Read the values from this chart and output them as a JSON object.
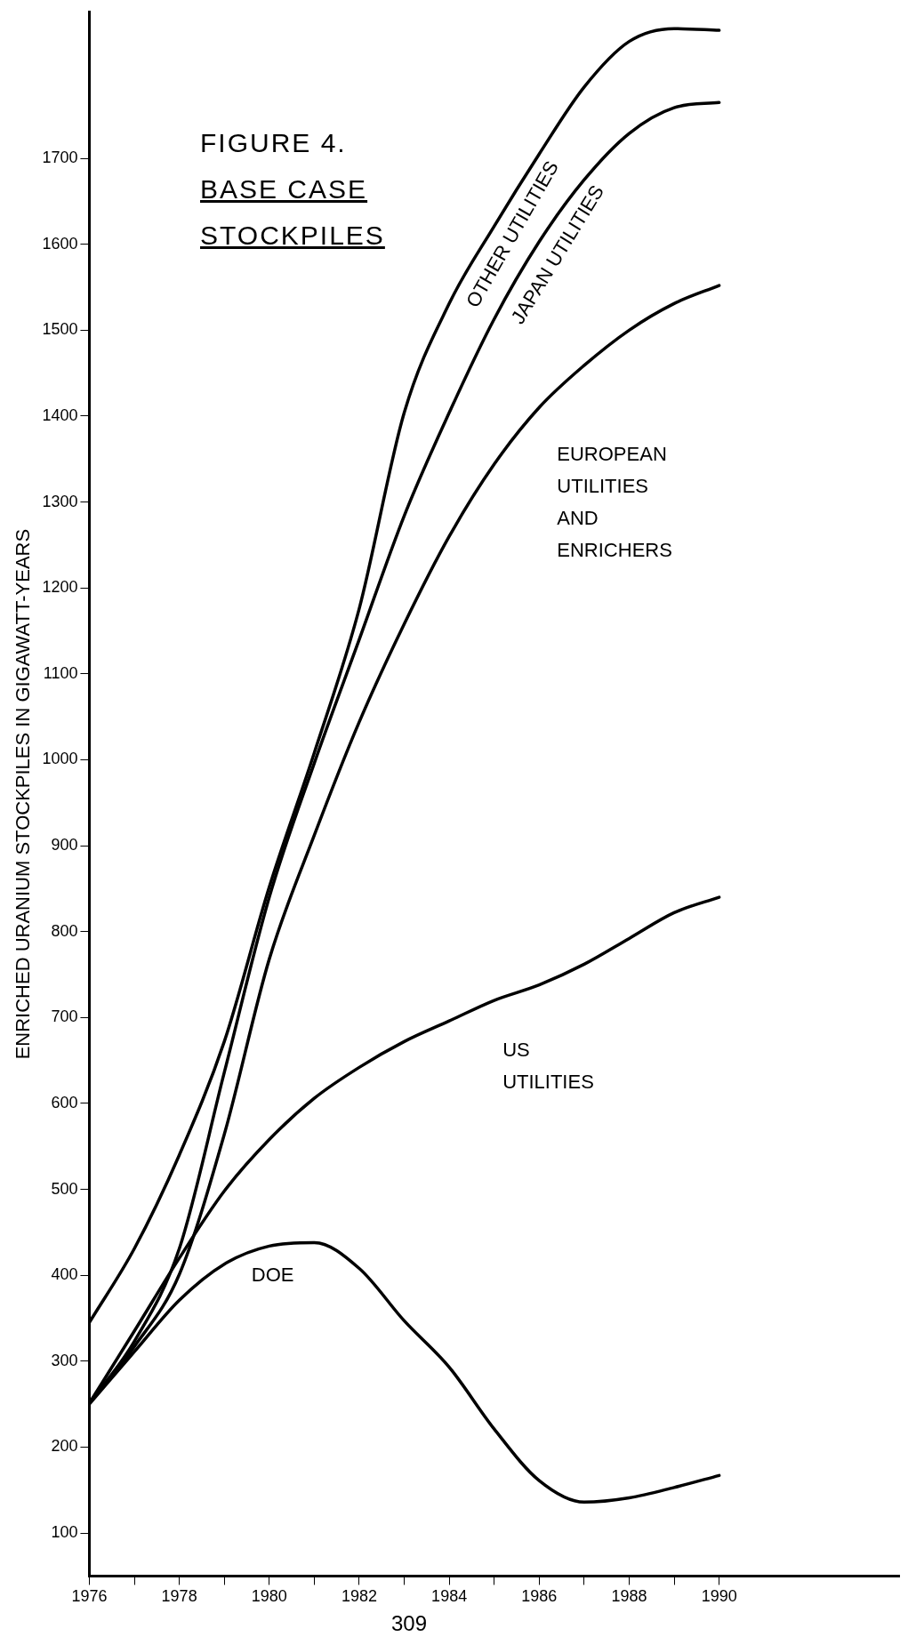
{
  "chart_data": {
    "type": "line",
    "title": "FIGURE 4.",
    "subtitle": "BASE CASE STOCKPILES",
    "ylabel": "ENRICHED URANIUM STOCKPILES IN GIGAWATT-YEARS",
    "annotations": [
      "309"
    ],
    "x": [
      1976,
      1977,
      1978,
      1979,
      1980,
      1981,
      1982,
      1983,
      1984,
      1985,
      1986,
      1987,
      1988,
      1989,
      1990
    ],
    "series": [
      {
        "name": "OTHER UTILITIES",
        "color": "#000000",
        "values": [
          345,
          431,
          540,
          672,
          852,
          1008,
          1176,
          1404,
          1531,
          1621,
          1705,
          1783,
          1836,
          1851,
          1849
        ]
      },
      {
        "name": "JAPAN UTILITIES",
        "color": "#000000",
        "values": [
          251,
          323,
          431,
          636,
          840,
          996,
          1140,
          1284,
          1404,
          1513,
          1603,
          1675,
          1729,
          1759,
          1765
        ]
      },
      {
        "name": "EUROPEAN UTILITIES AND ENRICHERS",
        "color": "#000000",
        "values": [
          251,
          317,
          401,
          564,
          768,
          912,
          1044,
          1158,
          1260,
          1344,
          1410,
          1459,
          1500,
          1531,
          1552
        ]
      },
      {
        "name": "US UTILITIES",
        "color": "#000000",
        "values": [
          251,
          335,
          420,
          498,
          558,
          606,
          642,
          672,
          696,
          720,
          738,
          762,
          792,
          822,
          840
        ]
      },
      {
        "name": "DOE",
        "color": "#000000",
        "values": [
          250,
          311,
          371,
          413,
          434,
          438,
          408,
          347,
          293,
          221,
          161,
          136,
          141,
          153,
          167
        ]
      }
    ],
    "xlim": [
      1976,
      1994
    ],
    "ylim": [
      50,
      1870
    ],
    "xticks": [
      1976,
      {
        "value": 1977,
        "label": null
      },
      1978,
      {
        "value": 1979,
        "label": null
      },
      1980,
      {
        "value": 1981,
        "label": null
      },
      1982,
      {
        "value": 1983,
        "label": null
      },
      1984,
      {
        "value": 1985,
        "label": null
      },
      1986,
      {
        "value": 1987,
        "label": null
      },
      1988,
      {
        "value": 1989,
        "label": null
      },
      1990
    ],
    "yticks": [
      100,
      200,
      300,
      400,
      500,
      600,
      700,
      800,
      900,
      1000,
      1100,
      1200,
      1300,
      1400,
      1500,
      1600,
      1700
    ],
    "grid": false,
    "legend": false,
    "marker": "none",
    "line_style": "solid"
  }
}
